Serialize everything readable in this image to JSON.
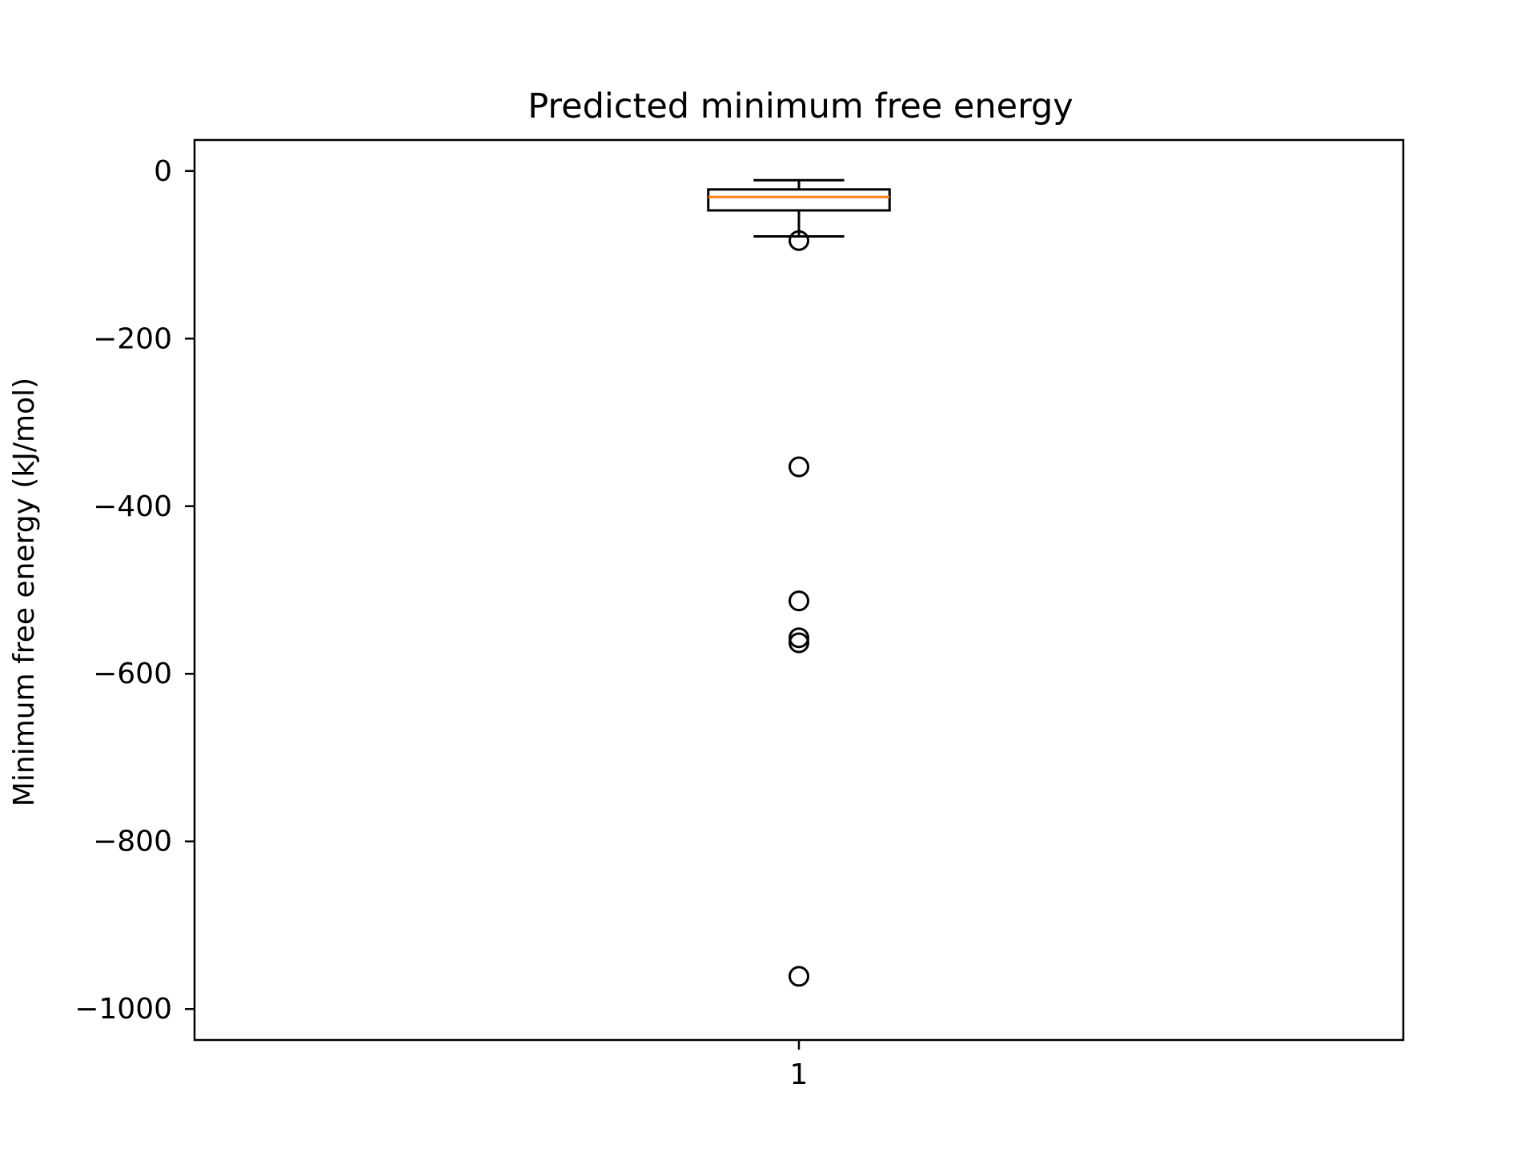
{
  "chart_data": {
    "type": "box",
    "title": "Predicted minimum free energy",
    "xlabel": "",
    "ylabel": "Minimum free energy (kJ/mol)",
    "categories": [
      "1"
    ],
    "ylim": [
      -1037,
      37
    ],
    "yticks": [
      0,
      -200,
      -400,
      -600,
      -800,
      -1000
    ],
    "ytick_labels": [
      "0",
      "−200",
      "−400",
      "−600",
      "−800",
      "−1000"
    ],
    "grid": false,
    "boxes": [
      {
        "category": "1",
        "whisker_high": -11,
        "q3": -22,
        "median": -31,
        "q1": -47,
        "whisker_low": -78,
        "outliers": [
          -83,
          -353,
          -513,
          -557,
          -563,
          -961
        ]
      }
    ],
    "colors": {
      "box": "#000000",
      "median": "#ff7f0e",
      "axes": "#000000"
    }
  }
}
